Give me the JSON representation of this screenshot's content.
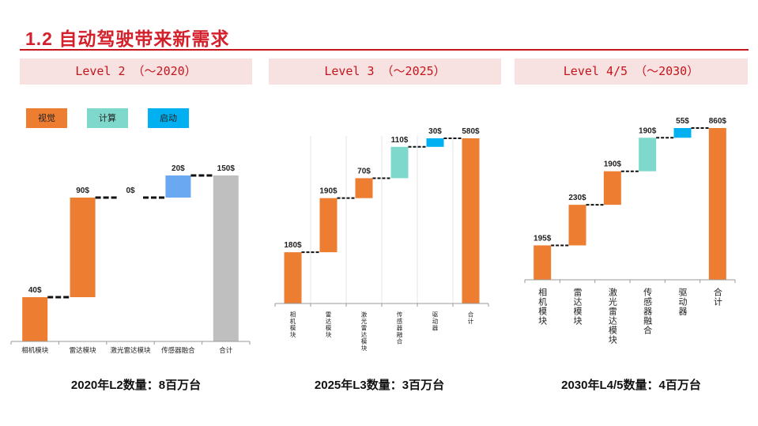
{
  "slide": {
    "title": "1.2 自动驾驶带来新需求"
  },
  "levels": [
    {
      "label": "Level 2 （～2020）"
    },
    {
      "label": "Level 3 （～2025）"
    },
    {
      "label": "Level 4/5 （～2030）"
    }
  ],
  "legend": [
    {
      "label": "视觉",
      "color": "#ed7d31"
    },
    {
      "label": "计算",
      "color": "#7fd8cc"
    },
    {
      "label": "启动",
      "color": "#00b0f0"
    }
  ],
  "captions": [
    "2020年L2数量：8百万台",
    "2025年L3数量：3百万台",
    "2030年L4/5数量：4百万台"
  ],
  "colors": {
    "orange": "#ed7d31",
    "teal": "#7fd8cc",
    "blue": "#00b0f0",
    "lightblue": "#6aa9f2",
    "gray": "#bfbfbf",
    "title_red": "#d4202a"
  },
  "chart_data": [
    {
      "type": "bar",
      "subtype": "waterfall",
      "categories": [
        "相机模块",
        "雷达模块",
        "激光雷达模块",
        "传感器融合",
        "合计"
      ],
      "values": [
        40,
        90,
        0,
        20,
        150
      ],
      "labels": [
        "40$",
        "90$",
        "0$",
        "20$",
        "150$"
      ],
      "kinds": [
        "delta",
        "delta",
        "delta",
        "delta",
        "total"
      ],
      "bar_colors": [
        "#ed7d31",
        "#ed7d31",
        "#ed7d31",
        "#6aa9f2",
        "#bfbfbf"
      ],
      "ylim": [
        0,
        150
      ],
      "label_orientation": "horizontal"
    },
    {
      "type": "bar",
      "subtype": "waterfall",
      "categories": [
        "相机模块",
        "雷达模块",
        "激光雷达模块",
        "传感器融合",
        "驱动器",
        "合计"
      ],
      "values": [
        180,
        190,
        70,
        110,
        30,
        580
      ],
      "labels": [
        "180$",
        "190$",
        "70$",
        "110$",
        "30$",
        "580$"
      ],
      "kinds": [
        "delta",
        "delta",
        "delta",
        "delta",
        "delta",
        "total"
      ],
      "bar_colors": [
        "#ed7d31",
        "#ed7d31",
        "#ed7d31",
        "#7fd8cc",
        "#00b0f0",
        "#ed7d31"
      ],
      "ylim": [
        0,
        580
      ],
      "label_orientation": "vertical"
    },
    {
      "type": "bar",
      "subtype": "waterfall",
      "categories": [
        "相机模块",
        "雷达模块",
        "激光雷达模块",
        "传感器融合",
        "驱动器",
        "合计"
      ],
      "values": [
        195,
        230,
        190,
        190,
        55,
        860
      ],
      "labels": [
        "195$",
        "230$",
        "190$",
        "190$",
        "55$",
        "860$"
      ],
      "kinds": [
        "delta",
        "delta",
        "delta",
        "delta",
        "delta",
        "total"
      ],
      "bar_colors": [
        "#ed7d31",
        "#ed7d31",
        "#ed7d31",
        "#7fd8cc",
        "#00b0f0",
        "#ed7d31"
      ],
      "ylim": [
        0,
        860
      ],
      "label_orientation": "vertical"
    }
  ]
}
